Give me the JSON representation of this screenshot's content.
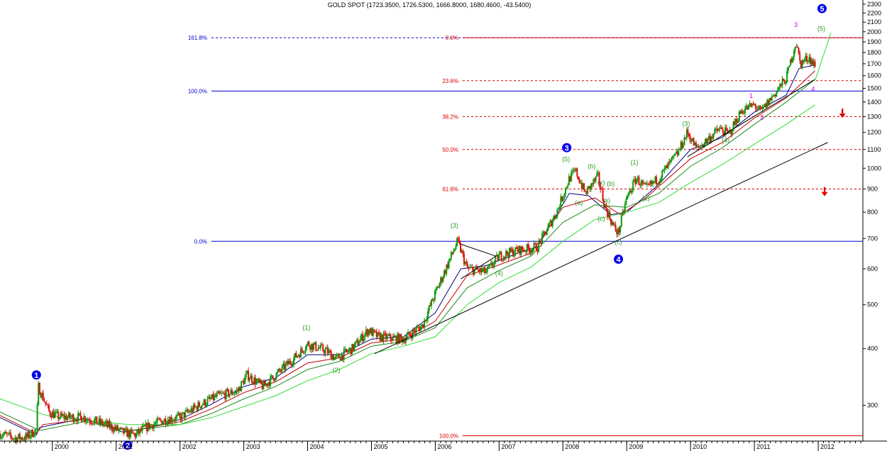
{
  "title": "GOLD SPOT (1723.3500, 1726.5300, 1666.8000, 1680.4600, -43.5400)",
  "colors": {
    "up": "#0a9a0a",
    "down": "#e01010",
    "ma_fast": "#000080",
    "ma_mid": "#c00000",
    "ma_slow": "#1d8c1d",
    "ma_longest": "#33dd33",
    "fib_blue": "#0000cc",
    "fib_red": "#dd0000",
    "wave_blue": "#0000ee",
    "wave_green": "#2a9a2a",
    "wave_magenta": "#e000e0",
    "trend": "#000000"
  },
  "chart_data": {
    "type": "candlestick",
    "title": "GOLD SPOT (1723.3500, 1726.5300, 1666.8000, 1680.4600, -43.5400)",
    "y_scale": "log",
    "ylim": [
      252,
      2350
    ],
    "xlim": [
      1999.18,
      2012.7
    ],
    "grid": false,
    "y_ticks": [
      300,
      400,
      500,
      600,
      700,
      800,
      900,
      1000,
      1100,
      1200,
      1300,
      1400,
      1500,
      1600,
      1700,
      1800,
      1900,
      2000,
      2100,
      2200,
      2300
    ],
    "x_ticks": [
      "2000",
      "2001",
      "2002",
      "2003",
      "2004",
      "2005",
      "2006",
      "2007",
      "2008",
      "2009",
      "2010",
      "2011",
      "2012"
    ],
    "price_path": [
      [
        1999.18,
        260
      ],
      [
        1999.4,
        254
      ],
      [
        1999.6,
        255
      ],
      [
        1999.75,
        265
      ],
      [
        1999.78,
        330
      ],
      [
        1999.95,
        290
      ],
      [
        2000.1,
        283
      ],
      [
        2000.5,
        282
      ],
      [
        2000.9,
        270
      ],
      [
        2001.1,
        262
      ],
      [
        2001.3,
        258
      ],
      [
        2001.5,
        270
      ],
      [
        2001.8,
        280
      ],
      [
        2002.0,
        282
      ],
      [
        2002.3,
        300
      ],
      [
        2002.6,
        315
      ],
      [
        2002.9,
        322
      ],
      [
        2003.05,
        350
      ],
      [
        2003.3,
        330
      ],
      [
        2003.6,
        360
      ],
      [
        2003.9,
        395
      ],
      [
        2004.0,
        410
      ],
      [
        2004.3,
        395
      ],
      [
        2004.45,
        380
      ],
      [
        2004.7,
        400
      ],
      [
        2004.95,
        440
      ],
      [
        2005.1,
        425
      ],
      [
        2005.5,
        420
      ],
      [
        2005.8,
        450
      ],
      [
        2006.0,
        530
      ],
      [
        2006.35,
        690
      ],
      [
        2006.5,
        600
      ],
      [
        2006.8,
        590
      ],
      [
        2007.0,
        640
      ],
      [
        2007.3,
        660
      ],
      [
        2007.6,
        670
      ],
      [
        2007.9,
        800
      ],
      [
        2008.1,
        950
      ],
      [
        2008.2,
        985
      ],
      [
        2008.35,
        880
      ],
      [
        2008.55,
        960
      ],
      [
        2008.65,
        830
      ],
      [
        2008.8,
        740
      ],
      [
        2008.87,
        720
      ],
      [
        2009.0,
        860
      ],
      [
        2009.15,
        950
      ],
      [
        2009.3,
        900
      ],
      [
        2009.5,
        950
      ],
      [
        2009.8,
        1080
      ],
      [
        2009.95,
        1200
      ],
      [
        2010.1,
        1100
      ],
      [
        2010.3,
        1170
      ],
      [
        2010.45,
        1220
      ],
      [
        2010.6,
        1190
      ],
      [
        2010.8,
        1340
      ],
      [
        2011.0,
        1380
      ],
      [
        2011.1,
        1330
      ],
      [
        2011.3,
        1450
      ],
      [
        2011.5,
        1580
      ],
      [
        2011.65,
        1900
      ],
      [
        2011.72,
        1700
      ],
      [
        2011.85,
        1760
      ],
      [
        2011.95,
        1680
      ]
    ],
    "moving_averages": [
      {
        "name": "fast",
        "points": [
          [
            1999.18,
            282
          ],
          [
            1999.75,
            258
          ],
          [
            1999.8,
            268
          ],
          [
            2000.5,
            281
          ],
          [
            2001.1,
            262
          ],
          [
            2001.4,
            266
          ],
          [
            2002.0,
            279
          ],
          [
            2002.5,
            302
          ],
          [
            2003.0,
            330
          ],
          [
            2003.5,
            345
          ],
          [
            2004.0,
            388
          ],
          [
            2004.5,
            388
          ],
          [
            2005.0,
            420
          ],
          [
            2005.5,
            425
          ],
          [
            2006.0,
            480
          ],
          [
            2006.4,
            600
          ],
          [
            2006.8,
            610
          ],
          [
            2007.3,
            650
          ],
          [
            2007.6,
            670
          ],
          [
            2008.1,
            880
          ],
          [
            2008.4,
            870
          ],
          [
            2008.75,
            790
          ],
          [
            2009.0,
            800
          ],
          [
            2009.5,
            920
          ],
          [
            2010.0,
            1100
          ],
          [
            2010.5,
            1170
          ],
          [
            2011.0,
            1330
          ],
          [
            2011.5,
            1450
          ],
          [
            2011.7,
            1660
          ],
          [
            2011.95,
            1690
          ]
        ]
      },
      {
        "name": "mid",
        "points": [
          [
            1999.18,
            285
          ],
          [
            1999.75,
            260
          ],
          [
            1999.85,
            272
          ],
          [
            2000.5,
            279
          ],
          [
            2001.2,
            263
          ],
          [
            2002.0,
            276
          ],
          [
            2002.5,
            295
          ],
          [
            2003.0,
            320
          ],
          [
            2003.5,
            338
          ],
          [
            2004.0,
            372
          ],
          [
            2004.5,
            382
          ],
          [
            2005.0,
            412
          ],
          [
            2005.5,
            420
          ],
          [
            2006.0,
            460
          ],
          [
            2006.5,
            580
          ],
          [
            2006.9,
            605
          ],
          [
            2007.5,
            650
          ],
          [
            2008.0,
            820
          ],
          [
            2008.5,
            860
          ],
          [
            2008.9,
            790
          ],
          [
            2009.3,
            860
          ],
          [
            2010.0,
            1050
          ],
          [
            2010.5,
            1140
          ],
          [
            2011.0,
            1290
          ],
          [
            2011.5,
            1430
          ],
          [
            2011.95,
            1640
          ]
        ]
      },
      {
        "name": "slow",
        "points": [
          [
            1999.18,
            290
          ],
          [
            1999.8,
            264
          ],
          [
            2000.5,
            276
          ],
          [
            2001.2,
            264
          ],
          [
            2002.0,
            272
          ],
          [
            2002.5,
            288
          ],
          [
            2003.0,
            310
          ],
          [
            2003.5,
            330
          ],
          [
            2004.0,
            360
          ],
          [
            2004.5,
            375
          ],
          [
            2005.0,
            405
          ],
          [
            2005.5,
            415
          ],
          [
            2006.0,
            445
          ],
          [
            2006.5,
            545
          ],
          [
            2007.0,
            595
          ],
          [
            2007.5,
            640
          ],
          [
            2008.0,
            760
          ],
          [
            2008.5,
            830
          ],
          [
            2009.0,
            820
          ],
          [
            2009.5,
            880
          ],
          [
            2010.0,
            1010
          ],
          [
            2010.5,
            1110
          ],
          [
            2011.0,
            1250
          ],
          [
            2011.5,
            1400
          ],
          [
            2011.95,
            1570
          ]
        ]
      },
      {
        "name": "longest",
        "points": [
          [
            1999.18,
            310
          ],
          [
            1999.9,
            285
          ],
          [
            2000.5,
            278
          ],
          [
            2001.2,
            272
          ],
          [
            2002.0,
            272
          ],
          [
            2002.5,
            282
          ],
          [
            2003.0,
            298
          ],
          [
            2003.5,
            315
          ],
          [
            2004.0,
            340
          ],
          [
            2004.5,
            360
          ],
          [
            2005.0,
            390
          ],
          [
            2005.5,
            405
          ],
          [
            2006.0,
            425
          ],
          [
            2006.5,
            500
          ],
          [
            2007.0,
            560
          ],
          [
            2007.5,
            605
          ],
          [
            2008.0,
            690
          ],
          [
            2008.5,
            770
          ],
          [
            2009.0,
            800
          ],
          [
            2009.5,
            840
          ],
          [
            2010.0,
            930
          ],
          [
            2010.5,
            1020
          ],
          [
            2011.0,
            1130
          ],
          [
            2011.5,
            1250
          ],
          [
            2011.95,
            1380
          ]
        ]
      }
    ],
    "trendlines": [
      {
        "kind": "support",
        "from": [
          2005.05,
          390
        ],
        "to": [
          2012.15,
          1140
        ]
      },
      {
        "kind": "channel-low",
        "from": [
          2009.95,
          1060
        ],
        "to": [
          2011.95,
          1570
        ]
      },
      {
        "kind": "triangle-top",
        "from": [
          2006.4,
          680
        ],
        "to": [
          2006.95,
          640
        ]
      },
      {
        "kind": "triangle-bottom",
        "from": [
          2006.4,
          570
        ],
        "to": [
          2006.95,
          640
        ]
      },
      {
        "kind": "projection",
        "from": [
          2011.95,
          1560
        ],
        "to": [
          2012.2,
          1990
        ]
      }
    ],
    "fib_levels": [
      {
        "label": "161.8%",
        "value": 1940,
        "color": "blue",
        "style": "dashed"
      },
      {
        "label": "100.0%",
        "value": 1480,
        "color": "blue",
        "style": "solid"
      },
      {
        "label": "0.0%",
        "value": 690,
        "color": "blue",
        "style": "solid"
      },
      {
        "label": "0.0%",
        "value": 1940,
        "color": "red",
        "style": "solid"
      },
      {
        "label": "23.6%",
        "value": 1560,
        "color": "red",
        "style": "dashed"
      },
      {
        "label": "38.2%",
        "value": 1300,
        "color": "red",
        "style": "dashed"
      },
      {
        "label": "50.0%",
        "value": 1100,
        "color": "red",
        "style": "dashed"
      },
      {
        "label": "61.8%",
        "value": 900,
        "color": "red",
        "style": "dashed"
      },
      {
        "label": "100.0%",
        "value": 257,
        "color": "red",
        "style": "solid"
      }
    ],
    "annotations": [
      {
        "label": "1",
        "kind": "circle",
        "x": 1999.75,
        "y": 350
      },
      {
        "label": "2",
        "kind": "circle",
        "x": 2001.18,
        "y": 245
      },
      {
        "label": "3",
        "kind": "circle",
        "x": 2008.06,
        "y": 1110
      },
      {
        "label": "4",
        "kind": "circle",
        "x": 2008.87,
        "y": 630
      },
      {
        "label": "5",
        "kind": "circle",
        "x": 2012.06,
        "y": 2250
      },
      {
        "label": "(1)",
        "kind": "green",
        "x": 2003.98,
        "y": 440
      },
      {
        "label": "(2)",
        "kind": "green",
        "x": 2004.45,
        "y": 355
      },
      {
        "label": "(3)",
        "kind": "green",
        "x": 2006.3,
        "y": 740
      },
      {
        "label": "(4)",
        "kind": "green",
        "x": 2007.0,
        "y": 580
      },
      {
        "label": "(5)",
        "kind": "green",
        "x": 2008.05,
        "y": 1035
      },
      {
        "label": "(a)",
        "kind": "green",
        "x": 2008.25,
        "y": 830
      },
      {
        "label": "(b)",
        "kind": "green",
        "x": 2008.45,
        "y": 1000
      },
      {
        "label": "(c)",
        "kind": "green",
        "x": 2008.6,
        "y": 765
      },
      {
        "label": "(x)",
        "kind": "green",
        "x": 2008.6,
        "y": 920
      },
      {
        "label": "(b)",
        "kind": "green",
        "x": 2008.75,
        "y": 915
      },
      {
        "label": "(a)",
        "kind": "green",
        "x": 2008.68,
        "y": 840
      },
      {
        "label": "(c)",
        "kind": "green",
        "x": 2008.87,
        "y": 680
      },
      {
        "label": "(1)",
        "kind": "green",
        "x": 2009.12,
        "y": 1020
      },
      {
        "label": "(2)",
        "kind": "green",
        "x": 2009.3,
        "y": 850
      },
      {
        "label": "(3)",
        "kind": "green",
        "x": 2009.93,
        "y": 1240
      },
      {
        "label": "(4)",
        "kind": "green",
        "x": 2010.55,
        "y": 1140
      },
      {
        "label": "(5)",
        "kind": "green",
        "x": 2012.05,
        "y": 2010
      },
      {
        "label": "1",
        "kind": "magenta",
        "x": 2010.95,
        "y": 1430
      },
      {
        "label": "2",
        "kind": "magenta",
        "x": 2011.12,
        "y": 1280
      },
      {
        "label": "3",
        "kind": "magenta",
        "x": 2011.65,
        "y": 2050
      },
      {
        "label": "4",
        "kind": "magenta",
        "x": 2011.92,
        "y": 1480
      }
    ],
    "arrows": [
      {
        "kind": "down",
        "x": 2012.38,
        "y": 1310
      },
      {
        "kind": "down",
        "x": 2012.1,
        "y": 880
      }
    ]
  }
}
